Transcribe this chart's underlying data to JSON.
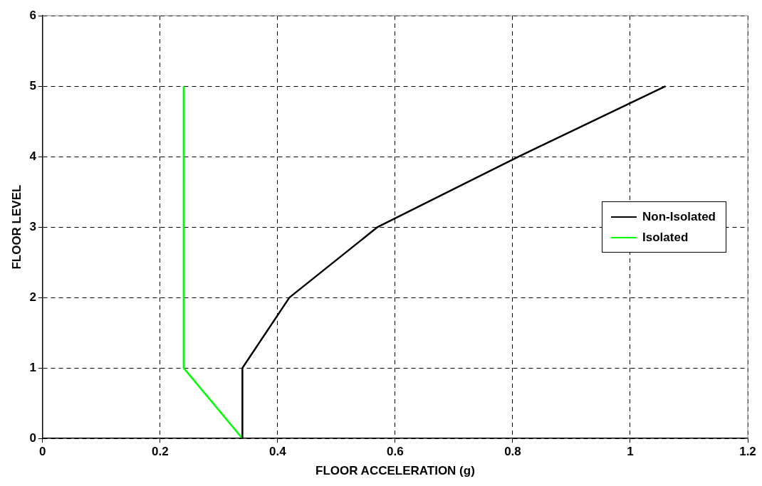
{
  "chart_data": {
    "type": "line",
    "xlabel": "FLOOR ACCELERATION (g)",
    "ylabel": "FLOOR LEVEL",
    "xlim": [
      0,
      1.2
    ],
    "xticks": [
      0,
      0.2,
      0.4,
      0.6,
      0.8,
      1,
      1.2
    ],
    "ylim": [
      0,
      6
    ],
    "yticks": [
      0,
      1,
      2,
      3,
      4,
      5,
      6
    ],
    "grid": true,
    "legend": "right",
    "marker": "none",
    "line_style": "solid",
    "series": [
      {
        "name": "Non-Isolated",
        "color": "#000000",
        "x": [
          0.34,
          0.34,
          0.42,
          0.57,
          0.81,
          1.06
        ],
        "values": [
          0,
          1,
          2,
          3,
          4,
          5
        ]
      },
      {
        "name": "Isolated",
        "color": "#00ff00",
        "x": [
          0.34,
          0.24,
          0.24
        ],
        "values": [
          0,
          1,
          5
        ]
      }
    ]
  }
}
